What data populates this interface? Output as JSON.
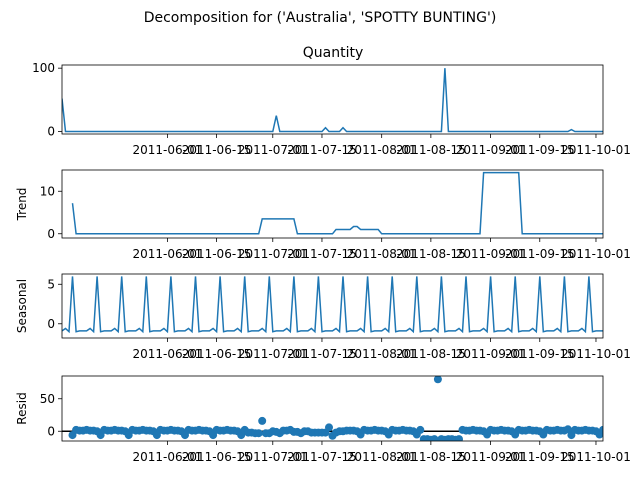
{
  "figure": {
    "title": "Decomposition for ('Australia', 'SPOTTY BUNTING')"
  },
  "x_axis": {
    "ticks": [
      {
        "day": 31,
        "label": "2011-06-01"
      },
      {
        "day": 45,
        "label": "2011-06-15"
      },
      {
        "day": 61,
        "label": "2011-07-01"
      },
      {
        "day": 75,
        "label": "2011-07-15"
      },
      {
        "day": 92,
        "label": "2011-08-01"
      },
      {
        "day": 106,
        "label": "2011-08-15"
      },
      {
        "day": 123,
        "label": "2011-09-01"
      },
      {
        "day": 137,
        "label": "2011-09-15"
      },
      {
        "day": 153,
        "label": "2011-10-01"
      }
    ],
    "range_days": [
      1,
      155
    ]
  },
  "chart_data": [
    {
      "type": "line",
      "panel": "observed",
      "title": "Quantity",
      "ylabel": "",
      "ylim": [
        -4,
        105
      ],
      "yticks": [
        0,
        100
      ],
      "x_day_start": 1,
      "values": [
        52,
        0,
        0,
        0,
        0,
        0,
        0,
        0,
        0,
        0,
        0,
        0,
        0,
        0,
        0,
        0,
        0,
        0,
        0,
        0,
        0,
        0,
        0,
        0,
        0,
        0,
        0,
        0,
        0,
        0,
        0,
        0,
        0,
        0,
        0,
        0,
        0,
        0,
        0,
        0,
        0,
        0,
        0,
        0,
        0,
        0,
        0,
        0,
        0,
        0,
        0,
        0,
        0,
        0,
        0,
        0,
        0,
        0,
        0,
        0,
        0,
        25,
        0,
        0,
        0,
        0,
        0,
        0,
        0,
        0,
        0,
        0,
        0,
        0,
        0,
        6,
        0,
        0,
        0,
        0,
        6,
        0,
        0,
        0,
        0,
        0,
        0,
        0,
        0,
        0,
        0,
        0,
        0,
        0,
        0,
        0,
        0,
        0,
        0,
        0,
        0,
        0,
        0,
        0,
        0,
        0,
        0,
        0,
        0,
        100,
        0,
        0,
        0,
        0,
        0,
        0,
        0,
        0,
        0,
        0,
        0,
        0,
        0,
        0,
        0,
        0,
        0,
        0,
        0,
        0,
        0,
        0,
        0,
        0,
        0,
        0,
        0,
        0,
        0,
        0,
        0,
        0,
        0,
        0,
        0,
        3,
        0,
        0,
        0,
        0,
        0,
        0,
        0,
        0,
        0,
        0,
        0,
        0,
        0,
        0,
        0,
        0,
        0,
        0,
        0,
        0,
        3
      ]
    },
    {
      "type": "line",
      "panel": "trend",
      "title": "",
      "ylabel": "Trend",
      "ylim": [
        -1,
        15
      ],
      "yticks": [
        0,
        10
      ],
      "x_day_start": 4,
      "values": [
        7.2,
        0,
        0,
        0,
        0,
        0,
        0,
        0,
        0,
        0,
        0,
        0,
        0,
        0,
        0,
        0,
        0,
        0,
        0,
        0,
        0,
        0,
        0,
        0,
        0,
        0,
        0,
        0,
        0,
        0,
        0,
        0,
        0,
        0,
        0,
        0,
        0,
        0,
        0,
        0,
        0,
        0,
        0,
        0,
        0,
        0,
        0,
        0,
        0,
        0,
        0,
        0,
        0,
        0,
        3.5,
        3.5,
        3.5,
        3.5,
        3.5,
        3.5,
        3.5,
        3.5,
        3.5,
        3.5,
        0,
        0,
        0,
        0,
        0,
        0,
        0,
        0,
        0,
        0,
        0,
        1,
        1,
        1,
        1,
        1,
        1.7,
        1.7,
        1,
        1,
        1,
        1,
        1,
        1,
        0,
        0,
        0,
        0,
        0,
        0,
        0,
        0,
        0,
        0,
        0,
        0,
        0,
        0,
        0,
        0,
        0,
        0,
        0,
        0,
        0,
        0,
        0,
        0,
        0,
        0,
        0,
        0,
        0,
        14.4,
        14.4,
        14.4,
        14.4,
        14.4,
        14.4,
        14.4,
        14.4,
        14.4,
        14.4,
        14.4,
        0,
        0,
        0,
        0,
        0,
        0,
        0,
        0,
        0,
        0,
        0,
        0,
        0,
        0,
        0,
        0,
        0,
        0,
        0,
        0,
        0,
        0,
        0,
        0,
        0,
        0,
        0,
        0,
        0,
        0,
        0,
        0,
        0,
        0.4,
        0.4,
        0.4,
        0.4,
        0.4,
        0.4,
        0.4,
        0.4,
        0.4,
        0,
        0,
        0,
        0,
        0,
        0,
        0,
        0,
        0,
        0,
        0.4
      ]
    },
    {
      "type": "line",
      "panel": "seasonal",
      "title": "",
      "ylabel": "Seasonal",
      "ylim": [
        -1.8,
        6.3
      ],
      "yticks": [
        0,
        5
      ],
      "period": 7,
      "x_day_start": 1,
      "pattern": [
        -1,
        6,
        -1,
        -0.9,
        -0.9,
        -0.9,
        -0.6
      ],
      "pattern_offset": 5
    },
    {
      "type": "scatter",
      "panel": "resid",
      "title": "",
      "ylabel": "Resid",
      "ylim": [
        -15,
        85
      ],
      "yticks": [
        0,
        50
      ],
      "x_day_start": 4,
      "values": [
        -6,
        2,
        1,
        1,
        2,
        1,
        1,
        0,
        -6,
        2,
        1,
        1,
        2,
        1,
        1,
        0,
        -6,
        2,
        1,
        1,
        2,
        1,
        1,
        0,
        -6,
        2,
        1,
        1,
        2,
        1,
        1,
        0,
        -6,
        2,
        1,
        1,
        2,
        1,
        1,
        0,
        -6,
        2,
        1,
        1,
        2,
        1,
        1,
        0,
        -6,
        2,
        -2,
        -2,
        -3,
        -3,
        16,
        -3,
        -3,
        0,
        -1,
        -3,
        1,
        1,
        2,
        -1,
        -1,
        -3,
        0,
        0,
        -2,
        -2,
        -2,
        -2,
        -2,
        6,
        -7,
        -2,
        0,
        0,
        1,
        1,
        1,
        0,
        -5,
        2,
        1,
        1,
        2,
        1,
        1,
        0,
        -5,
        2,
        1,
        1,
        2,
        1,
        1,
        0,
        -5,
        2,
        -12,
        -12,
        -13,
        -12,
        80,
        -12,
        -13,
        -12,
        -12,
        -13,
        -12,
        2,
        1,
        1,
        2,
        1,
        1,
        0,
        -5,
        2,
        1,
        1,
        2,
        1,
        1,
        0,
        -5,
        2,
        1,
        1,
        2,
        1,
        1,
        0,
        -5,
        2,
        1,
        1,
        2,
        1,
        1,
        3,
        -6,
        2,
        1,
        1,
        2,
        1,
        1,
        0,
        -5,
        2,
        1,
        1,
        2,
        1,
        1,
        0,
        -5,
        2,
        1,
        1,
        2,
        1,
        1,
        0
      ]
    }
  ]
}
